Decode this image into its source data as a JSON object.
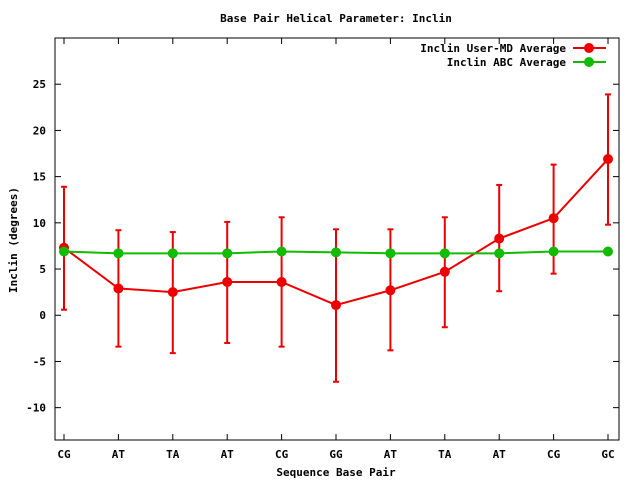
{
  "chart_data": {
    "type": "line",
    "title": "Base Pair Helical Parameter: Inclin",
    "xlabel": "Sequence Base Pair",
    "ylabel": "Inclin (degrees)",
    "categories": [
      "CG",
      "AT",
      "TA",
      "AT",
      "CG",
      "GG",
      "AT",
      "TA",
      "AT",
      "CG",
      "GC"
    ],
    "ylim": [
      -13.5,
      30
    ],
    "yticks": [
      -10,
      -5,
      0,
      5,
      10,
      15,
      20,
      25
    ],
    "grid": false,
    "legend_position": "top-right",
    "series": [
      {
        "name": "Inclin User-MD Average",
        "color": "#ee0000",
        "values": [
          7.3,
          2.9,
          2.5,
          3.6,
          3.6,
          1.1,
          2.7,
          4.7,
          8.3,
          10.5,
          16.9
        ],
        "error_low": [
          0.6,
          -3.4,
          -4.1,
          -3.0,
          -3.4,
          -7.2,
          -3.8,
          -1.3,
          2.6,
          4.5,
          9.8
        ],
        "error_high": [
          13.9,
          9.2,
          9.0,
          10.1,
          10.6,
          9.3,
          9.3,
          10.6,
          14.1,
          16.3,
          23.9
        ]
      },
      {
        "name": "Inclin ABC Average",
        "color": "#11bb00",
        "values": [
          6.9,
          6.7,
          6.7,
          6.7,
          6.9,
          6.8,
          6.7,
          6.7,
          6.7,
          6.9,
          6.9
        ]
      }
    ]
  }
}
